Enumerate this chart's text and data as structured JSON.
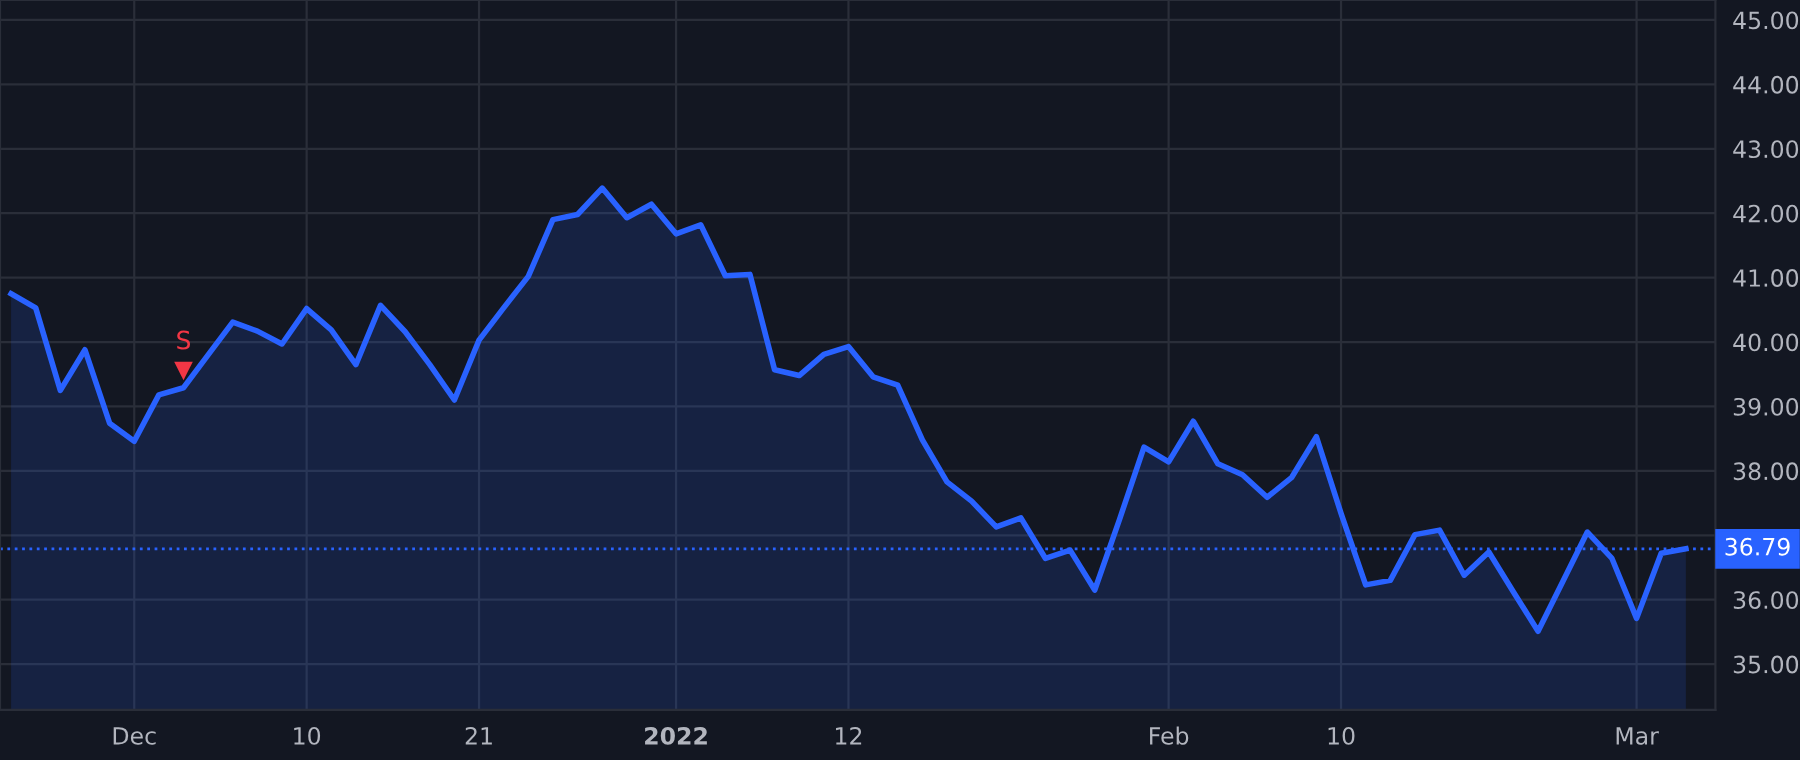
{
  "chart_data": {
    "type": "area",
    "categories": [
      null,
      null,
      null,
      null,
      null,
      "Dec",
      null,
      null,
      null,
      null,
      null,
      null,
      "10",
      null,
      null,
      null,
      null,
      null,
      null,
      "21",
      null,
      null,
      null,
      null,
      null,
      null,
      null,
      "2022",
      null,
      null,
      null,
      null,
      null,
      null,
      "12",
      null,
      null,
      null,
      null,
      null,
      null,
      null,
      null,
      null,
      null,
      null,
      null,
      "Feb",
      null,
      null,
      null,
      null,
      null,
      null,
      "10",
      null,
      null,
      null,
      null,
      null,
      null,
      null,
      null,
      null,
      null,
      null,
      "Mar",
      null,
      null
    ],
    "series": [
      {
        "color": "#2962ff",
        "values": [
          40.75,
          40.53,
          39.25,
          39.88,
          38.74,
          38.46,
          39.18,
          39.29,
          39.8,
          40.31,
          40.17,
          39.97,
          40.52,
          40.19,
          39.65,
          40.57,
          40.16,
          39.65,
          39.1,
          40.03,
          40.53,
          41.02,
          41.9,
          41.98,
          42.39,
          41.93,
          42.14,
          41.68,
          41.82,
          41.03,
          41.05,
          39.57,
          39.48,
          39.81,
          39.93,
          39.46,
          39.33,
          38.48,
          37.83,
          37.53,
          37.13,
          37.27,
          36.64,
          36.77,
          36.15,
          37.24,
          38.37,
          38.14,
          38.77,
          38.11,
          37.94,
          37.59,
          37.9,
          38.53,
          37.34,
          36.23,
          36.3,
          37.01,
          37.08,
          36.38,
          36.74,
          36.12,
          35.51,
          36.28,
          37.05,
          36.64,
          35.71,
          36.72,
          36.79
        ]
      },
      {
        "type": "scatter",
        "color": "#f23645",
        "marker": "triangle",
        "values": [
          null,
          null,
          null,
          null,
          null,
          null,
          null,
          39.55,
          null,
          null,
          null,
          null,
          null,
          null,
          null,
          null,
          null,
          null,
          null,
          null,
          null,
          null,
          null,
          null,
          null,
          null,
          null,
          null,
          null,
          null,
          null,
          null,
          null,
          null,
          null,
          null,
          null,
          null,
          null,
          null,
          null,
          null,
          null,
          null,
          null,
          null,
          null,
          null,
          null,
          null,
          null,
          null,
          null,
          null,
          null,
          null,
          null,
          null,
          null,
          null,
          null,
          null,
          null,
          null,
          null,
          null,
          null,
          null,
          null
        ],
        "value_labels": [
          null,
          null,
          null,
          null,
          null,
          null,
          null,
          "S",
          null,
          null,
          null,
          null,
          null,
          null,
          null,
          null,
          null,
          null,
          null,
          null,
          null,
          null,
          null,
          null,
          null,
          null,
          null,
          null,
          null,
          null,
          null,
          null,
          null,
          null,
          null,
          null,
          null,
          null,
          null,
          null,
          null,
          null,
          null,
          null,
          null,
          null,
          null,
          null,
          null,
          null,
          null,
          null,
          null,
          null,
          null,
          null,
          null,
          null,
          null,
          null,
          null,
          null,
          null,
          null,
          null,
          null,
          null,
          null,
          null
        ]
      }
    ],
    "ylim": [
      34.29,
      45.31
    ],
    "yticks": [
      {
        "value": 35,
        "label": "35.00"
      },
      {
        "value": 36,
        "label": "36.00"
      },
      {
        "value": 37,
        "label": null
      },
      {
        "value": 38,
        "label": "38.00"
      },
      {
        "value": 39,
        "label": "39.00"
      },
      {
        "value": 40,
        "label": "40.00"
      },
      {
        "value": 41,
        "label": "41.00"
      },
      {
        "value": 42,
        "label": "42.00"
      },
      {
        "value": 43,
        "label": "43.00"
      },
      {
        "value": 44,
        "label": "44.00"
      },
      {
        "value": 45,
        "label": "45.00"
      }
    ],
    "grid": true,
    "ref_lines": [
      {
        "axis": "y",
        "value": 36.79,
        "label": "36.79",
        "color": "#2962ff",
        "line_style": "dotted"
      }
    ]
  }
}
